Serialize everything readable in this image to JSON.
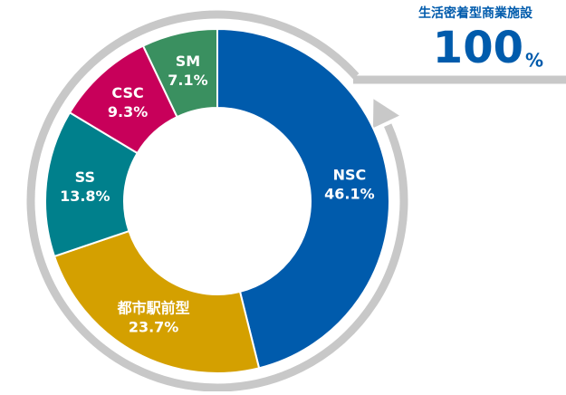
{
  "chart_data": {
    "type": "pie",
    "annotation": "生活密着型商業施設",
    "total_label": "100",
    "total_unit": "%",
    "categories": [
      "NSC",
      "都市駅前型",
      "SS",
      "CSC",
      "SM"
    ],
    "values": [
      46.1,
      23.7,
      13.8,
      9.3,
      7.1
    ],
    "value_labels": [
      "46.1%",
      "23.7%",
      "13.8%",
      "9.3%",
      "7.1%"
    ],
    "colors": [
      "#005bac",
      "#d4a000",
      "#00808c",
      "#c8005a",
      "#3a9060"
    ]
  }
}
